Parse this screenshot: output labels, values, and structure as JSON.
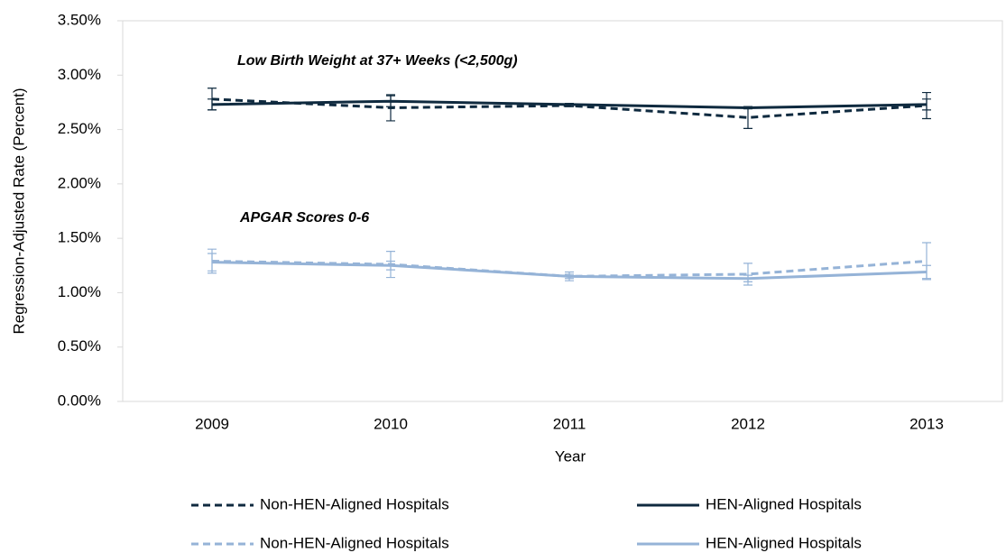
{
  "chart_data": {
    "type": "line",
    "x_label": "Year",
    "y_label": "Regression-Adjusted Rate (Percent)",
    "annotations": [
      "Low Birth Weight  at 37+ Weeks (<2,500g)",
      "APGAR Scores 0-6"
    ],
    "categories": [
      "2009",
      "2010",
      "2011",
      "2012",
      "2013"
    ],
    "series": [
      {
        "name": "Non-HEN-Aligned Hospitals",
        "color": "#0f2a3f",
        "dash": true,
        "values": [
          2.78,
          2.7,
          2.72,
          2.61,
          2.72
        ],
        "errors": [
          0.1,
          0.12,
          0.01,
          0.1,
          0.12
        ]
      },
      {
        "name": "HEN-Aligned Hospitals",
        "color": "#0f2a3f",
        "dash": false,
        "values": [
          2.73,
          2.76,
          2.73,
          2.7,
          2.73
        ],
        "errors": [
          0.05,
          0.05,
          0.01,
          0.01,
          0.05
        ]
      },
      {
        "name": "Non-HEN-Aligned Hospitals",
        "color": "#95b3d7",
        "dash": true,
        "values": [
          1.29,
          1.26,
          1.15,
          1.17,
          1.29
        ],
        "errors": [
          0.11,
          0.12,
          0.04,
          0.1,
          0.17
        ]
      },
      {
        "name": "HEN-Aligned Hospitals",
        "color": "#95b3d7",
        "dash": false,
        "values": [
          1.28,
          1.25,
          1.15,
          1.13,
          1.19
        ],
        "errors": [
          0.08,
          0.04,
          0.02,
          0.03,
          0.06
        ]
      }
    ],
    "ylim": [
      0,
      3.5
    ],
    "yticks": [
      {
        "value": 0,
        "label": "0.00%"
      },
      {
        "value": 0.5,
        "label": "0.50%"
      },
      {
        "value": 1,
        "label": "1.00%"
      },
      {
        "value": 1.5,
        "label": "1.50%"
      },
      {
        "value": 2,
        "label": "2.00%"
      },
      {
        "value": 2.5,
        "label": "2.50%"
      },
      {
        "value": 3,
        "label": "3.00%"
      },
      {
        "value": 3.5,
        "label": "3.50%"
      }
    ]
  }
}
